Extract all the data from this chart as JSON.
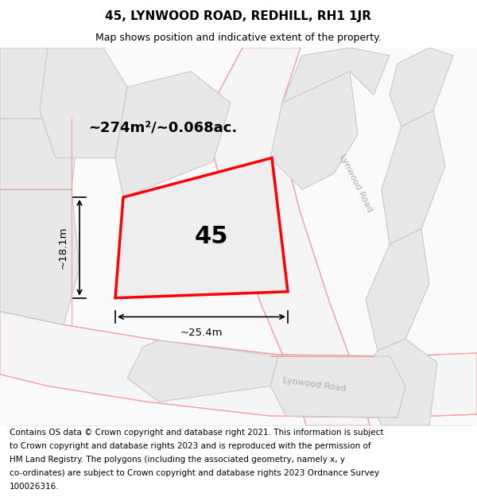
{
  "title": "45, LYNWOOD ROAD, REDHILL, RH1 1JR",
  "subtitle": "Map shows position and indicative extent of the property.",
  "footer_lines": [
    "Contains OS data © Crown copyright and database right 2021. This information is subject",
    "to Crown copyright and database rights 2023 and is reproduced with the permission of",
    "HM Land Registry. The polygons (including the associated geometry, namely x, y",
    "co-ordinates) are subject to Crown copyright and database rights 2023 Ordnance Survey",
    "100026316."
  ],
  "background_color": "#ffffff",
  "area_text": "~274m²/~0.068ac.",
  "label_45": "45",
  "dim_width": "~25.4m",
  "dim_height": "~18.1m",
  "road_label_1": "Lynwood Road",
  "road_label_2": "Lynwood Road",
  "title_fontsize": 11,
  "subtitle_fontsize": 9,
  "footer_fontsize": 7.5,
  "main_plot_color": "#ff0000",
  "neighbor_fill": "#e8e8e8",
  "neighbor_stroke": "#c8c8c8",
  "road_line_color": "#f4a0a0",
  "road_label_color": "#aaaaaa"
}
